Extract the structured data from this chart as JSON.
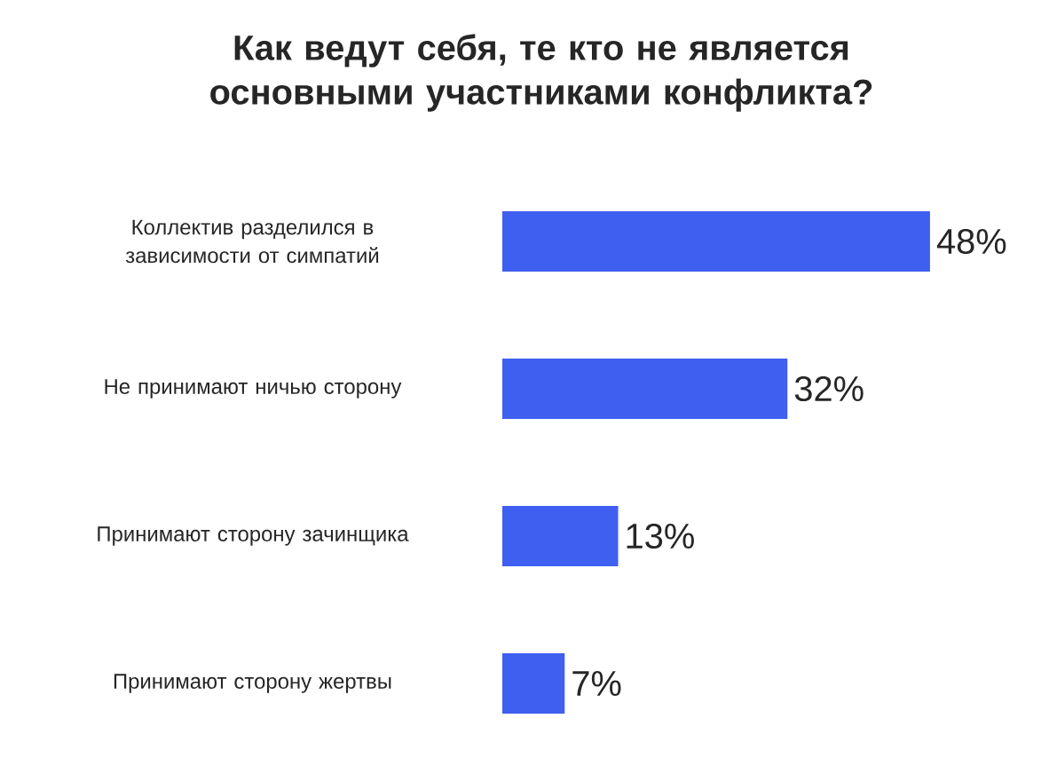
{
  "chart_data": {
    "type": "bar",
    "orientation": "horizontal",
    "title": "Как ведут себя, те кто не является основными участниками конфликта?",
    "categories": [
      "Коллектив разделился в зависимости от симпатий",
      "Не принимают ничью сторону",
      "Принимают сторону зачинщика",
      "Принимают сторону жертвы"
    ],
    "values": [
      48,
      32,
      13,
      7
    ],
    "value_labels": [
      "48%",
      "32%",
      "13%",
      "7%"
    ],
    "color": "#3f5ff0"
  }
}
